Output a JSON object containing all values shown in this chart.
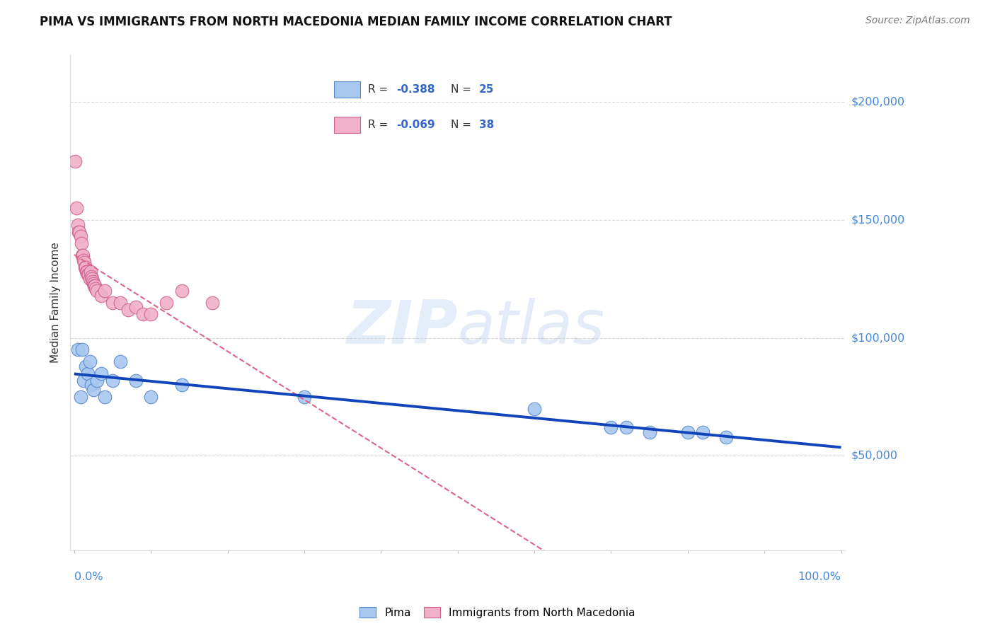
{
  "title": "PIMA VS IMMIGRANTS FROM NORTH MACEDONIA MEDIAN FAMILY INCOME CORRELATION CHART",
  "source": "Source: ZipAtlas.com",
  "ylabel": "Median Family Income",
  "ytick_labels": [
    "$50,000",
    "$100,000",
    "$150,000",
    "$200,000"
  ],
  "ytick_values": [
    50000,
    100000,
    150000,
    200000
  ],
  "ylim": [
    10000,
    220000
  ],
  "xlim": [
    -0.005,
    1.005
  ],
  "pima_color": "#a8c8f0",
  "pima_edge_color": "#5588cc",
  "immig_color": "#f0b0c8",
  "immig_edge_color": "#d06090",
  "trend_pima_color": "#1144bb",
  "trend_immig_color": "#dd6688",
  "background_color": "#ffffff",
  "grid_color": "#cccccc",
  "pima_x": [
    0.005,
    0.008,
    0.01,
    0.012,
    0.015,
    0.018,
    0.02,
    0.022,
    0.025,
    0.03,
    0.035,
    0.04,
    0.05,
    0.06,
    0.08,
    0.1,
    0.14,
    0.3,
    0.6,
    0.7,
    0.72,
    0.75,
    0.8,
    0.82,
    0.85
  ],
  "pima_y": [
    95000,
    75000,
    95000,
    82000,
    88000,
    85000,
    90000,
    80000,
    78000,
    82000,
    85000,
    75000,
    82000,
    90000,
    82000,
    75000,
    80000,
    75000,
    70000,
    62000,
    62000,
    60000,
    60000,
    60000,
    58000
  ],
  "immig_x": [
    0.001,
    0.003,
    0.005,
    0.006,
    0.007,
    0.008,
    0.009,
    0.01,
    0.011,
    0.012,
    0.013,
    0.014,
    0.015,
    0.016,
    0.017,
    0.018,
    0.019,
    0.02,
    0.021,
    0.022,
    0.023,
    0.024,
    0.025,
    0.026,
    0.027,
    0.028,
    0.03,
    0.035,
    0.04,
    0.05,
    0.06,
    0.07,
    0.08,
    0.09,
    0.1,
    0.12,
    0.14,
    0.18
  ],
  "immig_y": [
    175000,
    155000,
    148000,
    145000,
    145000,
    143000,
    140000,
    135000,
    135000,
    133000,
    132000,
    130000,
    130000,
    128000,
    128000,
    127000,
    127000,
    125000,
    128000,
    126000,
    125000,
    124000,
    123000,
    122000,
    122000,
    121000,
    120000,
    118000,
    120000,
    115000,
    115000,
    112000,
    113000,
    110000,
    110000,
    115000,
    120000,
    115000
  ]
}
